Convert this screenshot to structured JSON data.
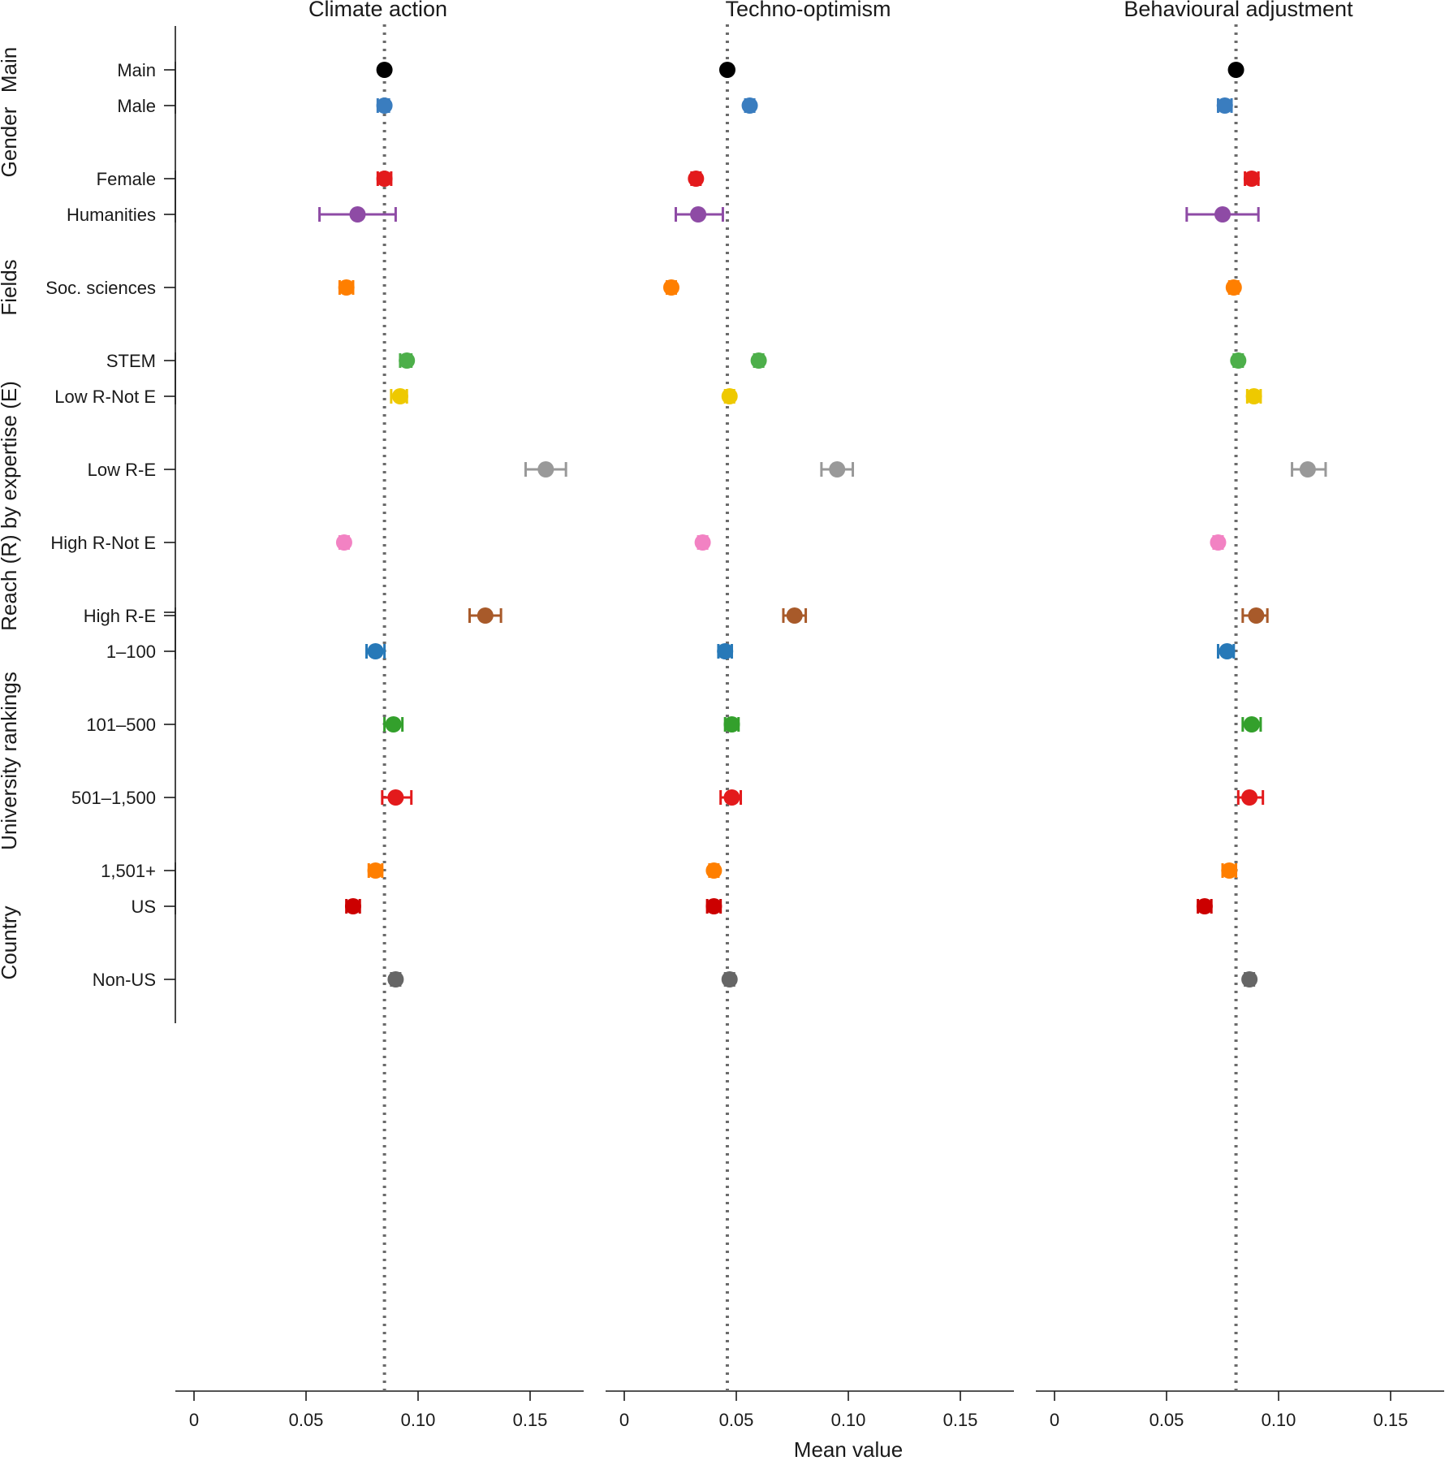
{
  "chart_data": {
    "type": "scatter",
    "subtype": "dot-and-whisker",
    "xlabel": "Mean value",
    "xlim": [
      -0.008,
      0.175
    ],
    "xticks": [
      0,
      0.05,
      0.1,
      0.15
    ],
    "xtick_labels": [
      "0",
      "0.05",
      "0.10",
      "0.15"
    ],
    "groups": [
      {
        "name": "Main",
        "rows": [
          "Main"
        ]
      },
      {
        "name": "Gender",
        "rows": [
          "Male",
          "Female"
        ]
      },
      {
        "name": "Fields",
        "rows": [
          "Humanities",
          "Soc. sciences",
          "STEM"
        ]
      },
      {
        "name": "Reach (R) by expertise (E)",
        "rows": [
          "Low R-Not E",
          "Low R-E",
          "High R-Not E",
          "High R-E"
        ]
      },
      {
        "name": "University rankings",
        "rows": [
          "1–100",
          "101–500",
          "501–1,500",
          "1,501+"
        ]
      },
      {
        "name": "Country",
        "rows": [
          "US",
          "Non-US"
        ]
      }
    ],
    "row_colors": {
      "Main": "#000000",
      "Male": "#3a7dbf",
      "Female": "#e31a1c",
      "Humanities": "#8e4ba5",
      "Soc. sciences": "#ff7f00",
      "STEM": "#4daf4a",
      "Low R-Not E": "#eec900",
      "Low R-E": "#999999",
      "High R-Not E": "#f282c3",
      "High R-E": "#a85a2a",
      "1–100": "#2779b8",
      "101–500": "#33a02c",
      "501–1,500": "#e31a1c",
      "1,501+": "#ff7f00",
      "US": "#cc0000",
      "Non-US": "#666666"
    },
    "panels": [
      {
        "title": "Climate action",
        "reference": 0.085,
        "points": [
          {
            "row": "Main",
            "value": 0.085,
            "low": 0.084,
            "high": 0.086
          },
          {
            "row": "Male",
            "value": 0.085,
            "low": 0.082,
            "high": 0.087
          },
          {
            "row": "Female",
            "value": 0.085,
            "low": 0.082,
            "high": 0.088
          },
          {
            "row": "Humanities",
            "value": 0.073,
            "low": 0.056,
            "high": 0.09
          },
          {
            "row": "Soc. sciences",
            "value": 0.068,
            "low": 0.065,
            "high": 0.071
          },
          {
            "row": "STEM",
            "value": 0.095,
            "low": 0.092,
            "high": 0.097
          },
          {
            "row": "Low R-Not E",
            "value": 0.092,
            "low": 0.088,
            "high": 0.095
          },
          {
            "row": "Low R-E",
            "value": 0.157,
            "low": 0.148,
            "high": 0.166
          },
          {
            "row": "High R-Not E",
            "value": 0.067,
            "low": 0.065,
            "high": 0.069
          },
          {
            "row": "High R-E",
            "value": 0.13,
            "low": 0.123,
            "high": 0.137
          },
          {
            "row": "1–100",
            "value": 0.081,
            "low": 0.077,
            "high": 0.085
          },
          {
            "row": "101–500",
            "value": 0.089,
            "low": 0.085,
            "high": 0.093
          },
          {
            "row": "501–1,500",
            "value": 0.09,
            "low": 0.084,
            "high": 0.097
          },
          {
            "row": "1,501+",
            "value": 0.081,
            "low": 0.078,
            "high": 0.084
          },
          {
            "row": "US",
            "value": 0.071,
            "low": 0.068,
            "high": 0.074
          },
          {
            "row": "Non-US",
            "value": 0.09,
            "low": 0.088,
            "high": 0.092
          }
        ]
      },
      {
        "title": "Techno-optimism",
        "reference": 0.046,
        "points": [
          {
            "row": "Main",
            "value": 0.046,
            "low": 0.045,
            "high": 0.047
          },
          {
            "row": "Male",
            "value": 0.056,
            "low": 0.054,
            "high": 0.058
          },
          {
            "row": "Female",
            "value": 0.032,
            "low": 0.03,
            "high": 0.034
          },
          {
            "row": "Humanities",
            "value": 0.033,
            "low": 0.023,
            "high": 0.044
          },
          {
            "row": "Soc. sciences",
            "value": 0.021,
            "low": 0.019,
            "high": 0.023
          },
          {
            "row": "STEM",
            "value": 0.06,
            "low": 0.058,
            "high": 0.062
          },
          {
            "row": "Low R-Not E",
            "value": 0.047,
            "low": 0.045,
            "high": 0.049
          },
          {
            "row": "Low R-E",
            "value": 0.095,
            "low": 0.088,
            "high": 0.102
          },
          {
            "row": "High R-Not E",
            "value": 0.035,
            "low": 0.033,
            "high": 0.037
          },
          {
            "row": "High R-E",
            "value": 0.076,
            "low": 0.071,
            "high": 0.081
          },
          {
            "row": "1–100",
            "value": 0.045,
            "low": 0.042,
            "high": 0.048
          },
          {
            "row": "101–500",
            "value": 0.048,
            "low": 0.045,
            "high": 0.051
          },
          {
            "row": "501–1,500",
            "value": 0.048,
            "low": 0.043,
            "high": 0.052
          },
          {
            "row": "1,501+",
            "value": 0.04,
            "low": 0.038,
            "high": 0.042
          },
          {
            "row": "US",
            "value": 0.04,
            "low": 0.037,
            "high": 0.043
          },
          {
            "row": "Non-US",
            "value": 0.047,
            "low": 0.045,
            "high": 0.049
          }
        ]
      },
      {
        "title": "Behavioural adjustment",
        "reference": 0.081,
        "points": [
          {
            "row": "Main",
            "value": 0.081,
            "low": 0.08,
            "high": 0.082
          },
          {
            "row": "Male",
            "value": 0.076,
            "low": 0.073,
            "high": 0.079
          },
          {
            "row": "Female",
            "value": 0.088,
            "low": 0.085,
            "high": 0.091
          },
          {
            "row": "Humanities",
            "value": 0.075,
            "low": 0.059,
            "high": 0.091
          },
          {
            "row": "Soc. sciences",
            "value": 0.08,
            "low": 0.078,
            "high": 0.082
          },
          {
            "row": "STEM",
            "value": 0.082,
            "low": 0.08,
            "high": 0.084
          },
          {
            "row": "Low R-Not E",
            "value": 0.089,
            "low": 0.086,
            "high": 0.092
          },
          {
            "row": "Low R-E",
            "value": 0.113,
            "low": 0.106,
            "high": 0.121
          },
          {
            "row": "High R-Not E",
            "value": 0.073,
            "low": 0.071,
            "high": 0.075
          },
          {
            "row": "High R-E",
            "value": 0.09,
            "low": 0.084,
            "high": 0.095
          },
          {
            "row": "1–100",
            "value": 0.077,
            "low": 0.073,
            "high": 0.08
          },
          {
            "row": "101–500",
            "value": 0.088,
            "low": 0.084,
            "high": 0.092
          },
          {
            "row": "501–1,500",
            "value": 0.087,
            "low": 0.082,
            "high": 0.093
          },
          {
            "row": "1,501+",
            "value": 0.078,
            "low": 0.075,
            "high": 0.081
          },
          {
            "row": "US",
            "value": 0.067,
            "low": 0.064,
            "high": 0.07
          },
          {
            "row": "Non-US",
            "value": 0.087,
            "low": 0.085,
            "high": 0.089
          }
        ]
      }
    ]
  }
}
